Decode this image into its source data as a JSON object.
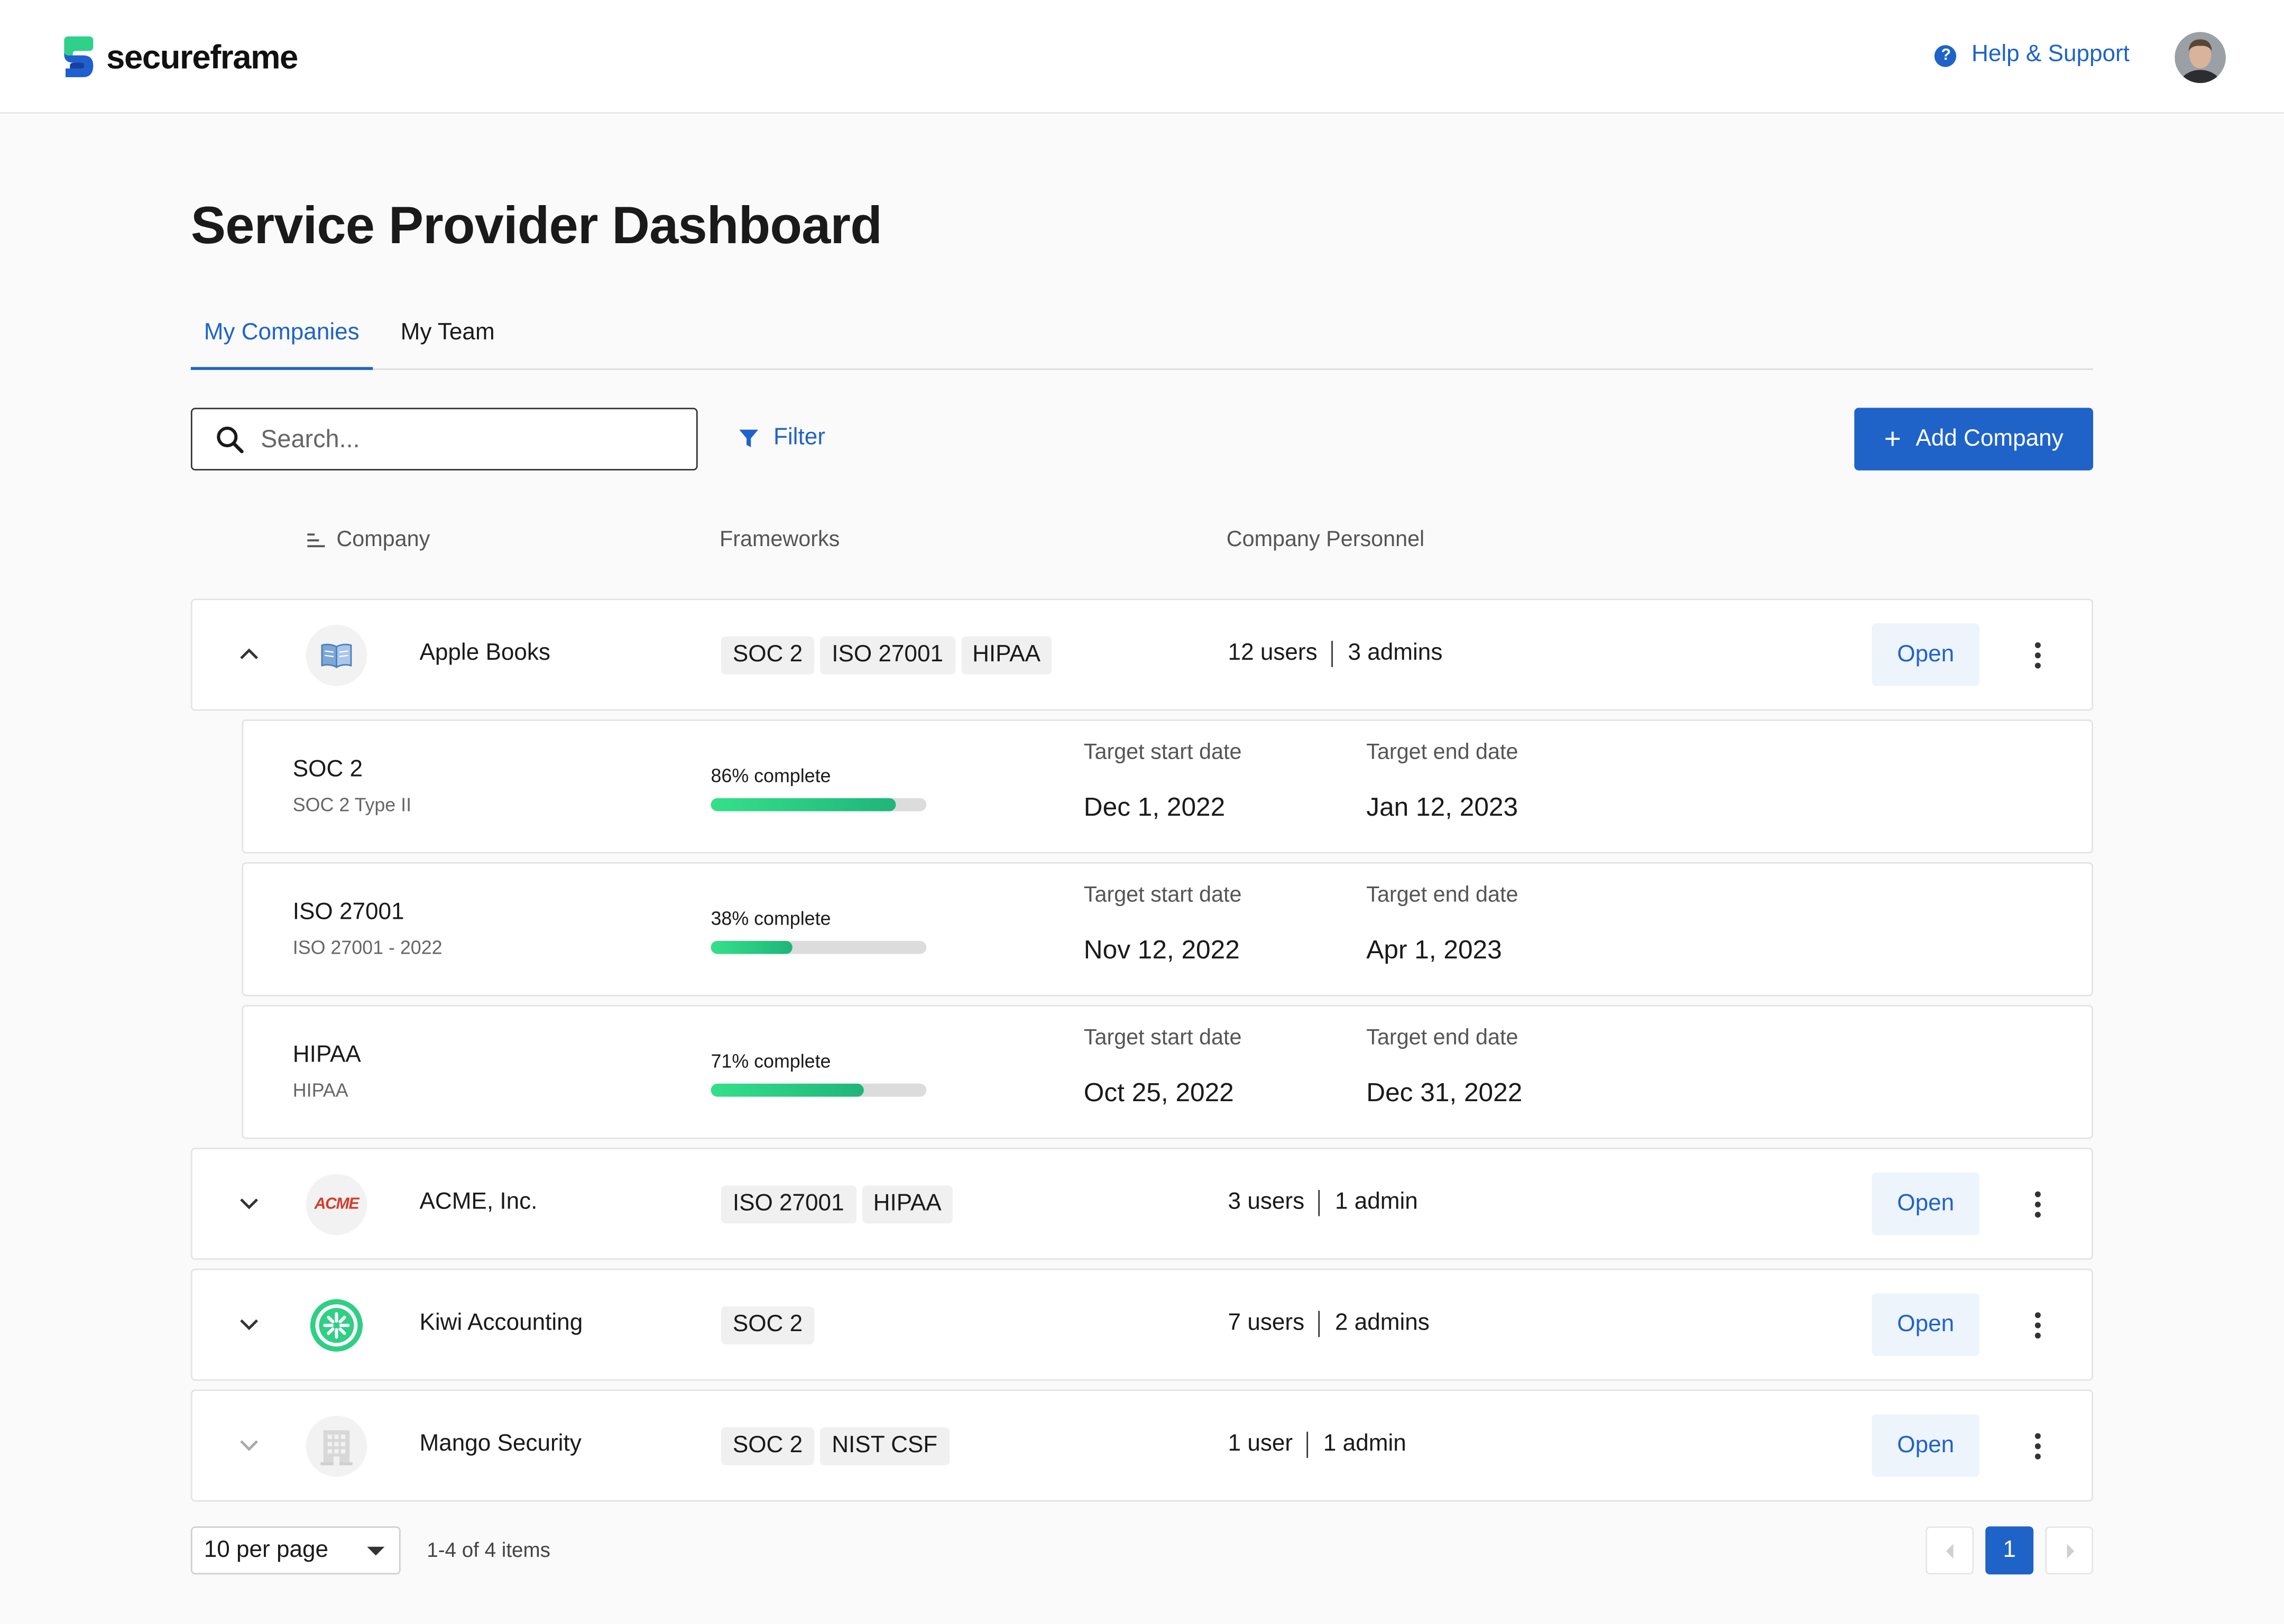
{
  "brand": {
    "name": "secureframe"
  },
  "header": {
    "help_label": "Help & Support"
  },
  "page": {
    "title": "Service Provider Dashboard"
  },
  "tabs": [
    {
      "label": "My Companies",
      "active": true
    },
    {
      "label": "My Team",
      "active": false
    }
  ],
  "toolbar": {
    "search_placeholder": "Search...",
    "filter_label": "Filter",
    "add_label": "Add Company"
  },
  "columns": {
    "company": "Company",
    "frameworks": "Frameworks",
    "personnel": "Company Personnel"
  },
  "companies": [
    {
      "name": "Apple Books",
      "logo": "book-icon",
      "expanded": true,
      "frameworks": [
        "SOC 2",
        "ISO 27001",
        "HIPAA"
      ],
      "users": "12 users",
      "admins": "3 admins",
      "open_label": "Open",
      "details": [
        {
          "name": "SOC 2",
          "subtitle": "SOC 2 Type II",
          "progress_label": "86% complete",
          "progress": 0.86,
          "start_label": "Target start date",
          "start": "Dec 1, 2022",
          "end_label": "Target end date",
          "end": "Jan 12, 2023"
        },
        {
          "name": "ISO 27001",
          "subtitle": "ISO 27001 - 2022",
          "progress_label": "38% complete",
          "progress": 0.38,
          "start_label": "Target start date",
          "start": "Nov 12, 2022",
          "end_label": "Target end date",
          "end": "Apr 1, 2023"
        },
        {
          "name": "HIPAA",
          "subtitle": "HIPAA",
          "progress_label": "71% complete",
          "progress": 0.71,
          "start_label": "Target start date",
          "start": "Oct 25, 2022",
          "end_label": "Target end date",
          "end": "Dec 31, 2022"
        }
      ]
    },
    {
      "name": "ACME, Inc.",
      "logo_text": "ACME",
      "expanded": false,
      "frameworks": [
        "ISO 27001",
        "HIPAA"
      ],
      "users": "3 users",
      "admins": "1 admin",
      "open_label": "Open"
    },
    {
      "name": "Kiwi Accounting",
      "logo": "kiwi-icon",
      "expanded": false,
      "frameworks": [
        "SOC 2"
      ],
      "users": "7 users",
      "admins": "2 admins",
      "open_label": "Open"
    },
    {
      "name": "Mango Security",
      "logo": "building-icon",
      "expanded": false,
      "frameworks": [
        "SOC 2",
        "NIST CSF"
      ],
      "users": "1 user",
      "admins": "1 admin",
      "open_label": "Open"
    }
  ],
  "pagination": {
    "per_page": "10 per page",
    "items_text": "1-4 of 4 items",
    "current_page": "1"
  },
  "colors": {
    "accent": "#1f63c9",
    "progress": "#2fd483",
    "acme_red": "#d43c2c",
    "kiwi_green": "#2fcf86"
  }
}
